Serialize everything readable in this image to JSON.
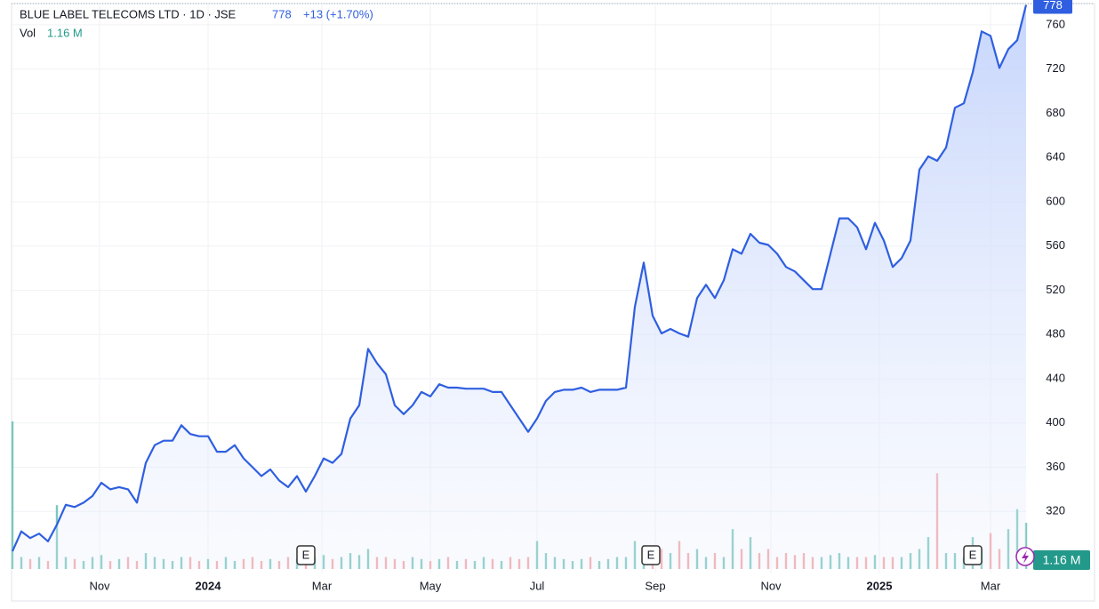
{
  "chart_data": {
    "type": "area",
    "title": "BLUE LABEL TELECOMS LTD · 1D · JSE",
    "price": "778",
    "change": "+13 (+1.70%)",
    "volume_label": "Vol",
    "volume_value": "1.16 M",
    "xlim": [
      0,
      114
    ],
    "xticks": [
      {
        "value": 9.8,
        "label": "Nov"
      },
      {
        "value": 22,
        "label": "2024"
      },
      {
        "value": 34.8,
        "label": "Mar"
      },
      {
        "value": 47,
        "label": "May"
      },
      {
        "value": 59,
        "label": "Jul"
      },
      {
        "value": 72.3,
        "label": "Sep"
      },
      {
        "value": 85.3,
        "label": "Nov"
      },
      {
        "value": 97.5,
        "label": "2025"
      },
      {
        "value": 110,
        "label": "Mar"
      }
    ],
    "ylim": [
      268,
      780
    ],
    "yticks": [
      320,
      360,
      400,
      440,
      480,
      520,
      560,
      600,
      640,
      680,
      720,
      760
    ],
    "y2lim": [
      0,
      14.2
    ],
    "grid": true,
    "series": [
      {
        "name": "Price",
        "color": "#2f5fe0",
        "values": [
          284,
          302,
          296,
          300,
          293,
          308,
          326,
          324,
          328,
          334,
          346,
          340,
          342,
          340,
          328,
          364,
          380,
          384,
          384,
          398,
          390,
          388,
          388,
          374,
          374,
          380,
          368,
          360,
          352,
          358,
          348,
          342,
          352,
          338,
          352,
          368,
          364,
          372,
          404,
          416,
          467,
          454,
          444,
          416,
          408,
          416,
          428,
          424,
          435,
          432,
          432,
          431,
          431,
          431,
          428,
          428,
          416,
          404,
          392,
          404,
          420,
          428,
          430,
          430,
          432,
          428,
          430,
          430,
          430,
          432,
          505,
          545,
          497,
          481,
          485,
          481,
          478,
          513,
          525,
          513,
          529,
          557,
          553,
          571,
          563,
          561,
          553,
          541,
          537,
          529,
          521,
          521,
          553,
          585,
          585,
          577,
          557,
          581,
          565,
          541,
          549,
          565,
          629,
          641,
          637,
          649,
          685,
          689,
          717,
          754,
          750,
          721,
          738,
          746,
          778
        ]
      },
      {
        "name": "Volume",
        "axis": "y2",
        "values": [
          3.7,
          0.3,
          0.25,
          0.3,
          0.2,
          1.6,
          0.3,
          0.25,
          0.2,
          0.3,
          0.35,
          0.2,
          0.25,
          0.3,
          0.2,
          0.4,
          0.3,
          0.25,
          0.2,
          0.3,
          0.3,
          0.2,
          0.25,
          0.2,
          0.3,
          0.2,
          0.25,
          0.3,
          0.2,
          0.25,
          0.2,
          0.3,
          0.25,
          0.2,
          0.3,
          0.35,
          0.25,
          0.3,
          0.4,
          0.35,
          0.5,
          0.3,
          0.3,
          0.25,
          0.2,
          0.3,
          0.25,
          0.2,
          0.25,
          0.3,
          0.2,
          0.25,
          0.2,
          0.3,
          0.25,
          0.2,
          0.3,
          0.25,
          0.3,
          0.7,
          0.4,
          0.3,
          0.25,
          0.2,
          0.25,
          0.3,
          0.2,
          0.25,
          0.3,
          0.3,
          0.7,
          0.6,
          0.4,
          0.5,
          0.4,
          0.7,
          0.4,
          0.5,
          0.3,
          0.4,
          0.3,
          1.0,
          0.5,
          0.8,
          0.4,
          0.5,
          0.3,
          0.4,
          0.35,
          0.4,
          0.3,
          0.3,
          0.35,
          0.4,
          0.3,
          0.3,
          0.3,
          0.35,
          0.3,
          0.3,
          0.3,
          0.4,
          0.5,
          0.8,
          2.4,
          0.4,
          0.4,
          0.3,
          0.8,
          0.5,
          0.9,
          0.5,
          1.0,
          1.5,
          1.16
        ]
      }
    ],
    "events": [
      {
        "label": "E",
        "x": 33
      },
      {
        "label": "E",
        "x": 71.8
      },
      {
        "label": "E",
        "x": 108
      }
    ]
  }
}
